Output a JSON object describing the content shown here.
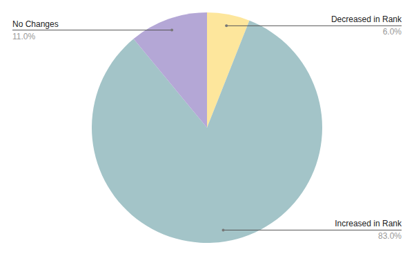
{
  "chart_data": {
    "type": "pie",
    "categories": [
      "Decreased in Rank",
      "Increased in Rank",
      "No Changes"
    ],
    "values": [
      6,
      83,
      11
    ],
    "value_labels": [
      "6.0%",
      "83.0%",
      "11.0%"
    ],
    "colors": [
      "#fde69c",
      "#a3c4c8",
      "#b4a7d6"
    ],
    "data_labels": true
  }
}
